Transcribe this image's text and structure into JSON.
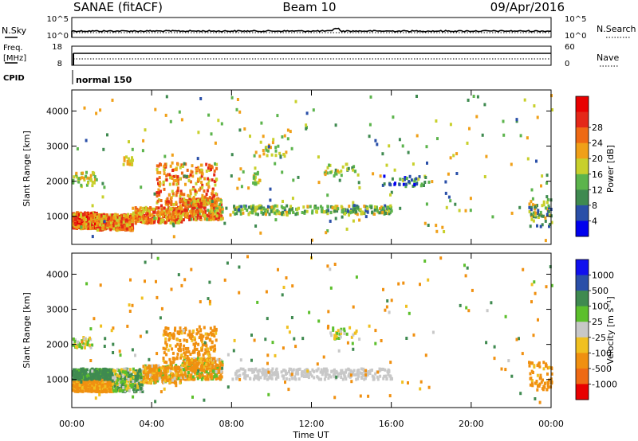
{
  "header": {
    "station": "SANAE (fitACF)",
    "beam": "Beam 10",
    "date": "09/Apr/2016"
  },
  "noise_panel": {
    "left_label": "N.Sky",
    "right_label": "N.Search",
    "left_ticks": [
      "10^5",
      "10^0"
    ],
    "right_ticks": [
      "10^5",
      "10^0"
    ]
  },
  "freq_panel": {
    "left_label_1": "Freq.",
    "left_label_2": "[MHz]",
    "right_label": "Nave",
    "left_ticks": [
      "18",
      "8"
    ],
    "right_ticks": [
      "60",
      "0"
    ]
  },
  "cpid_panel": {
    "label": "CPID",
    "mode_text": "normal 150"
  },
  "x_axis": {
    "label": "Time UT",
    "ticks": [
      "00:00",
      "04:00",
      "08:00",
      "12:00",
      "16:00",
      "20:00",
      "00:00"
    ]
  },
  "colors": {
    "power": [
      "#0000ee",
      "#2a4fa8",
      "#3f8a50",
      "#5cb44c",
      "#c8d02c",
      "#f0a018",
      "#ef6a14",
      "#e42818",
      "#e80000"
    ],
    "velocity": [
      "#e80000",
      "#ef6a14",
      "#f09010",
      "#f0c020",
      "#c8c8c8",
      "#5cbf2c",
      "#3f8a50",
      "#2a4fa8",
      "#1010ee"
    ]
  },
  "chart_data": [
    {
      "type": "heatmap",
      "name": "power",
      "xlabel": "Time UT",
      "ylabel": "Slant Range [km]",
      "xlim": [
        0,
        24
      ],
      "ylim": [
        200,
        4600
      ],
      "yticks": [
        "1000",
        "2000",
        "3000",
        "4000"
      ],
      "colorbar": {
        "label": "Power [dB]",
        "ticks": [
          "4",
          "8",
          "12",
          "16",
          "20",
          "24",
          "28"
        ],
        "range": [
          0,
          30
        ]
      },
      "regions": [
        {
          "t": [
            0.0,
            1.2
          ],
          "r": [
            650,
            1100
          ],
          "v": [
            14,
            28
          ]
        },
        {
          "t": [
            1.2,
            3.0
          ],
          "r": [
            600,
            1050
          ],
          "v": [
            14,
            26
          ]
        },
        {
          "t": [
            3.0,
            5.5
          ],
          "r": [
            800,
            1250
          ],
          "v": [
            14,
            26
          ]
        },
        {
          "t": [
            5.5,
            7.5
          ],
          "r": [
            900,
            1500
          ],
          "v": [
            12,
            26
          ]
        },
        {
          "t": [
            4.2,
            7.2
          ],
          "r": [
            1300,
            2500
          ],
          "v": [
            14,
            26
          ]
        },
        {
          "t": [
            0.0,
            1.2
          ],
          "r": [
            1850,
            2250
          ],
          "v": [
            10,
            20
          ]
        },
        {
          "t": [
            2.5,
            3.0
          ],
          "r": [
            2450,
            2700
          ],
          "v": [
            12,
            20
          ]
        },
        {
          "t": [
            8.0,
            16.0
          ],
          "r": [
            1050,
            1300
          ],
          "v": [
            6,
            18
          ]
        },
        {
          "t": [
            9.0,
            9.4
          ],
          "r": [
            1900,
            2400
          ],
          "v": [
            10,
            20
          ]
        },
        {
          "t": [
            12.6,
            14.3
          ],
          "r": [
            2150,
            2500
          ],
          "v": [
            8,
            18
          ]
        },
        {
          "t": [
            15.5,
            17.8
          ],
          "r": [
            1850,
            2150
          ],
          "v": [
            2,
            14
          ]
        },
        {
          "t": [
            22.8,
            24.0
          ],
          "r": [
            700,
            1500
          ],
          "v": [
            4,
            20
          ]
        },
        {
          "t": [
            8.8,
            11.0
          ],
          "r": [
            2700,
            3300
          ],
          "v": [
            10,
            20
          ]
        },
        {
          "t": [
            0.0,
            24.0
          ],
          "r": [
            300,
            4500
          ],
          "v": [
            4,
            20
          ]
        }
      ],
      "point_counts": [
        520,
        420,
        300,
        280,
        240,
        40,
        18,
        260,
        18,
        30,
        40,
        60,
        30,
        220
      ]
    },
    {
      "type": "heatmap",
      "name": "velocity",
      "xlabel": "Time UT",
      "ylabel": "Slant Range [km]",
      "xlim": [
        0,
        24
      ],
      "ylim": [
        200,
        4600
      ],
      "yticks": [
        "1000",
        "2000",
        "3000",
        "4000"
      ],
      "colorbar": {
        "label": "Velocity [m s⁻¹]",
        "ticks": [
          "1000",
          "500",
          "100",
          "25",
          "-25",
          "-100",
          "-500",
          "-1000"
        ],
        "range": [
          -1200,
          1200
        ]
      },
      "regions": [
        {
          "t": [
            0.0,
            2.0
          ],
          "r": [
            650,
            1000
          ],
          "v": [
            -500,
            -25
          ]
        },
        {
          "t": [
            0.0,
            2.0
          ],
          "r": [
            1000,
            1300
          ],
          "v": [
            25,
            500
          ]
        },
        {
          "t": [
            2.0,
            3.5
          ],
          "r": [
            650,
            1300
          ],
          "v": [
            -100,
            200
          ]
        },
        {
          "t": [
            3.5,
            5.5
          ],
          "r": [
            900,
            1400
          ],
          "v": [
            -500,
            100
          ]
        },
        {
          "t": [
            5.5,
            7.5
          ],
          "r": [
            1000,
            1600
          ],
          "v": [
            -500,
            100
          ]
        },
        {
          "t": [
            4.5,
            7.2
          ],
          "r": [
            1300,
            2500
          ],
          "v": [
            -500,
            -25
          ]
        },
        {
          "t": [
            8.0,
            16.0
          ],
          "r": [
            1000,
            1300
          ],
          "v": [
            -20,
            20
          ]
        },
        {
          "t": [
            0.0,
            1.0
          ],
          "r": [
            1900,
            2200
          ],
          "v": [
            -100,
            100
          ]
        },
        {
          "t": [
            12.8,
            14.2
          ],
          "r": [
            2150,
            2500
          ],
          "v": [
            -100,
            100
          ]
        },
        {
          "t": [
            22.8,
            24.0
          ],
          "r": [
            700,
            1500
          ],
          "v": [
            -500,
            -25
          ]
        },
        {
          "t": [
            0.0,
            24.0
          ],
          "r": [
            300,
            4500
          ],
          "v": [
            -500,
            300
          ]
        }
      ],
      "point_counts": [
        380,
        300,
        300,
        280,
        300,
        240,
        300,
        40,
        30,
        60,
        200
      ]
    }
  ]
}
